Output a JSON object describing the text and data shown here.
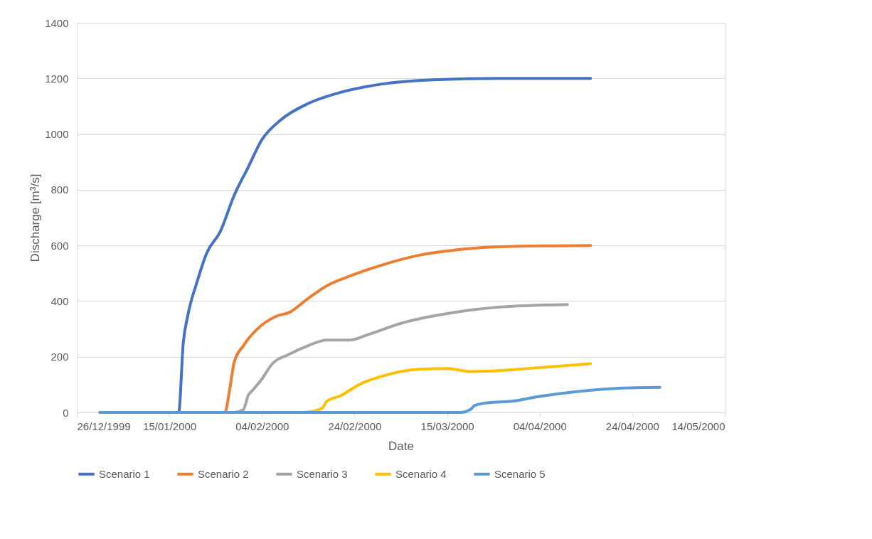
{
  "chart_data": {
    "type": "line",
    "xlabel": "Date",
    "ylabel": "Discharge [m³/s]",
    "xlim": [
      "1999-12-26",
      "2000-05-14"
    ],
    "xticks": [
      {
        "value": "1999-12-26",
        "label": "26/12/1999"
      },
      {
        "value": "2000-01-15",
        "label": "15/01/2000"
      },
      {
        "value": "2000-02-04",
        "label": "04/02/2000"
      },
      {
        "value": "2000-02-24",
        "label": "24/02/2000"
      },
      {
        "value": "2000-03-15",
        "label": "15/03/2000"
      },
      {
        "value": "2000-04-04",
        "label": "04/04/2000"
      },
      {
        "value": "2000-04-24",
        "label": "24/04/2000"
      },
      {
        "value": "2000-05-14",
        "label": "14/05/2000"
      }
    ],
    "ylim": [
      0,
      1400
    ],
    "yticks": [
      0,
      200,
      400,
      600,
      800,
      1000,
      1200,
      1400
    ],
    "grid": "y",
    "legend": "bottom",
    "marker": "none",
    "line_style": "solid",
    "series": [
      {
        "name": "Scenario 1",
        "color": "#4472c4",
        "x": [
          "1999-12-31",
          "2000-01-17",
          "2000-01-18",
          "2000-01-19",
          "2000-01-21",
          "2000-01-23",
          "2000-01-26",
          "2000-01-29",
          "2000-02-01",
          "2000-02-04",
          "2000-02-08",
          "2000-02-14",
          "2000-02-21",
          "2000-03-01",
          "2000-03-12",
          "2000-03-26",
          "2000-04-15"
        ],
        "values": [
          0,
          0,
          250,
          350,
          470,
          570,
          650,
          780,
          880,
          980,
          1050,
          1110,
          1150,
          1180,
          1195,
          1200,
          1200
        ]
      },
      {
        "name": "Scenario 2",
        "color": "#ed7d31",
        "x": [
          "1999-12-31",
          "2000-01-27",
          "2000-01-28",
          "2000-01-29",
          "2000-01-31",
          "2000-02-03",
          "2000-02-07",
          "2000-02-10",
          "2000-02-14",
          "2000-02-18",
          "2000-02-23",
          "2000-03-01",
          "2000-03-09",
          "2000-03-15",
          "2000-03-26",
          "2000-04-15"
        ],
        "values": [
          0,
          0,
          80,
          180,
          240,
          300,
          345,
          360,
          410,
          455,
          490,
          530,
          565,
          580,
          595,
          600
        ]
      },
      {
        "name": "Scenario 3",
        "color": "#a5a5a5",
        "x": [
          "1999-12-31",
          "2000-01-29",
          "2000-01-31",
          "2000-02-01",
          "2000-02-02",
          "2000-02-04",
          "2000-02-06",
          "2000-02-10",
          "2000-02-14",
          "2000-02-18",
          "2000-02-23",
          "2000-02-27",
          "2000-03-05",
          "2000-03-15",
          "2000-03-26",
          "2000-04-10"
        ],
        "values": [
          0,
          0,
          10,
          60,
          80,
          120,
          170,
          210,
          240,
          260,
          260,
          280,
          320,
          355,
          378,
          388
        ]
      },
      {
        "name": "Scenario 4",
        "color": "#ffc000",
        "x": [
          "1999-12-31",
          "2000-02-13",
          "2000-02-17",
          "2000-02-18",
          "2000-02-21",
          "2000-02-25",
          "2000-03-02",
          "2000-03-09",
          "2000-03-15",
          "2000-03-20",
          "2000-03-24",
          "2000-04-03",
          "2000-04-15"
        ],
        "values": [
          0,
          0,
          15,
          40,
          60,
          100,
          135,
          155,
          158,
          147,
          148,
          160,
          175
        ]
      },
      {
        "name": "Scenario 5",
        "color": "#5b9bd5",
        "x": [
          "1999-12-31",
          "2000-03-18",
          "2000-03-20",
          "2000-03-21",
          "2000-03-24",
          "2000-03-29",
          "2000-04-03",
          "2000-04-12",
          "2000-04-21",
          "2000-04-30"
        ],
        "values": [
          0,
          0,
          10,
          25,
          35,
          40,
          55,
          75,
          87,
          90
        ]
      }
    ]
  }
}
